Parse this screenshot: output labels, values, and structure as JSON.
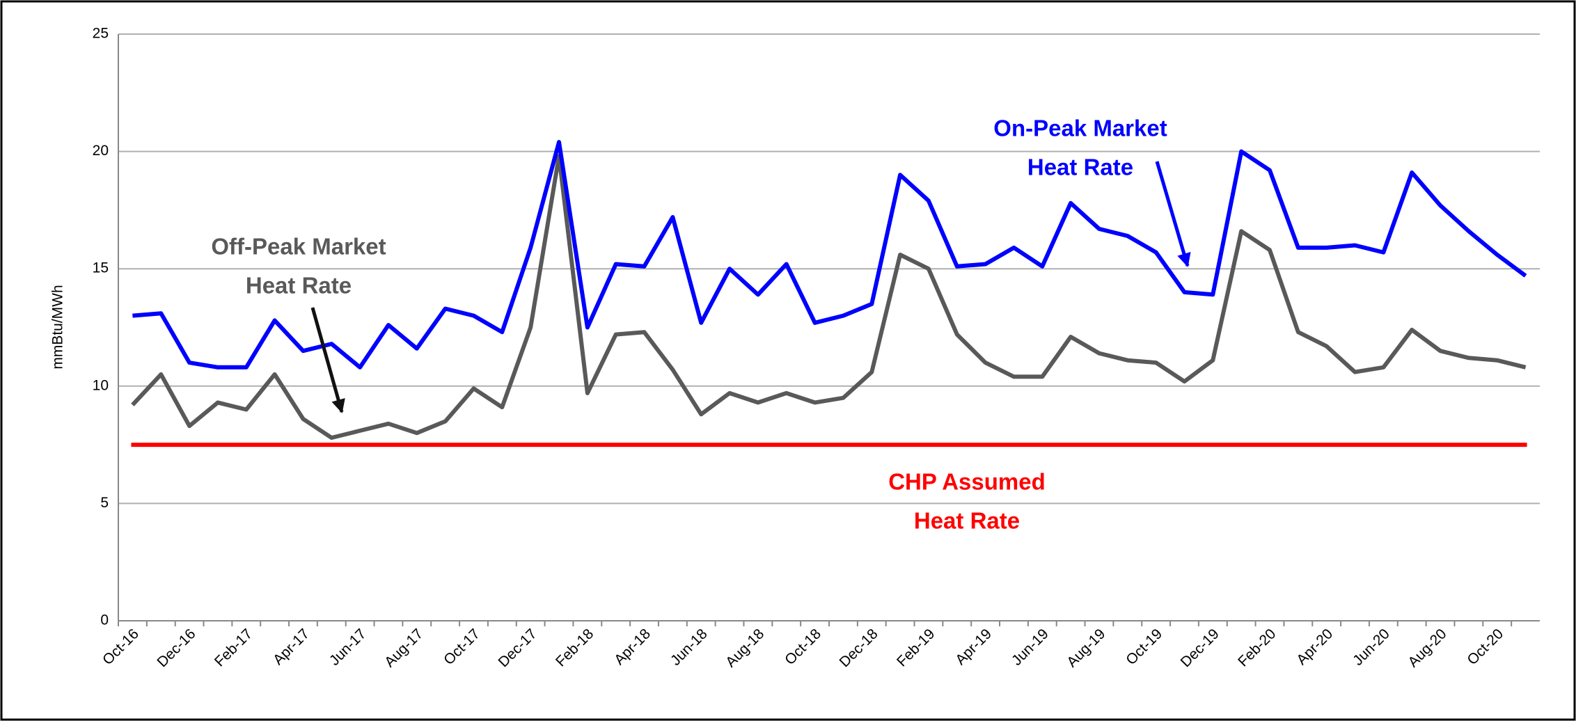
{
  "chart_data": {
    "type": "line",
    "y_label": "mmBtu/MWh",
    "categories": [
      "Oct-16",
      null,
      "Dec-16",
      null,
      "Feb-17",
      null,
      "Apr-17",
      null,
      "Jun-17",
      null,
      "Aug-17",
      null,
      "Oct-17",
      null,
      "Dec-17",
      null,
      "Feb-18",
      null,
      "Apr-18",
      null,
      "Jun-18",
      null,
      "Aug-18",
      null,
      "Oct-18",
      null,
      "Dec-18",
      null,
      "Feb-19",
      null,
      "Apr-19",
      null,
      "Jun-19",
      null,
      "Aug-19",
      null,
      "Oct-19",
      null,
      "Dec-19",
      null,
      "Feb-20",
      null,
      "Apr-20",
      null,
      "Jun-20",
      null,
      "Aug-20",
      null,
      "Oct-20",
      null
    ],
    "series": [
      {
        "name": "On-Peak Market Heat Rate",
        "color": "#0000ff",
        "values": [
          13.0,
          13.1,
          11.0,
          10.8,
          10.8,
          12.8,
          11.5,
          11.8,
          10.8,
          12.6,
          11.6,
          13.3,
          13.0,
          12.3,
          15.9,
          20.4,
          12.5,
          15.2,
          15.1,
          17.2,
          12.7,
          15.0,
          13.9,
          15.2,
          12.7,
          13.0,
          13.5,
          19.0,
          17.9,
          15.1,
          15.2,
          15.9,
          15.1,
          17.8,
          16.7,
          16.4,
          15.7,
          14.0,
          13.9,
          20.0,
          19.2,
          15.9,
          15.9,
          16.0,
          15.7,
          19.1,
          17.7,
          16.6,
          15.6,
          14.7
        ]
      },
      {
        "name": "Off-Peak Market Heat Rate",
        "color": "#595959",
        "values": [
          9.2,
          10.5,
          8.3,
          9.3,
          9.0,
          10.5,
          8.6,
          7.8,
          8.1,
          8.4,
          8.0,
          8.5,
          9.9,
          9.1,
          12.5,
          19.8,
          9.7,
          12.2,
          12.3,
          10.7,
          8.8,
          9.7,
          9.3,
          9.7,
          9.3,
          9.5,
          10.6,
          15.6,
          15.0,
          12.2,
          11.0,
          10.4,
          10.4,
          12.1,
          11.4,
          11.1,
          11.0,
          10.2,
          11.1,
          16.6,
          15.8,
          12.3,
          11.7,
          10.6,
          10.8,
          12.4,
          11.5,
          11.2,
          11.1,
          10.8
        ]
      }
    ],
    "reference_line": {
      "value": 7.5,
      "color": "#ff0000"
    },
    "annotations": [
      {
        "lines": [
          "On-Peak Market",
          "Heat Rate"
        ],
        "color": "#0000ff"
      },
      {
        "lines": [
          "Off-Peak Market",
          "Heat Rate"
        ],
        "color": "#595959"
      },
      {
        "lines": [
          "CHP Assumed",
          "Heat Rate"
        ],
        "color": "#ff0000"
      }
    ],
    "ylim": [
      0,
      25
    ],
    "yticks": [
      0,
      5,
      10,
      15,
      20,
      25
    ],
    "grid": true
  }
}
